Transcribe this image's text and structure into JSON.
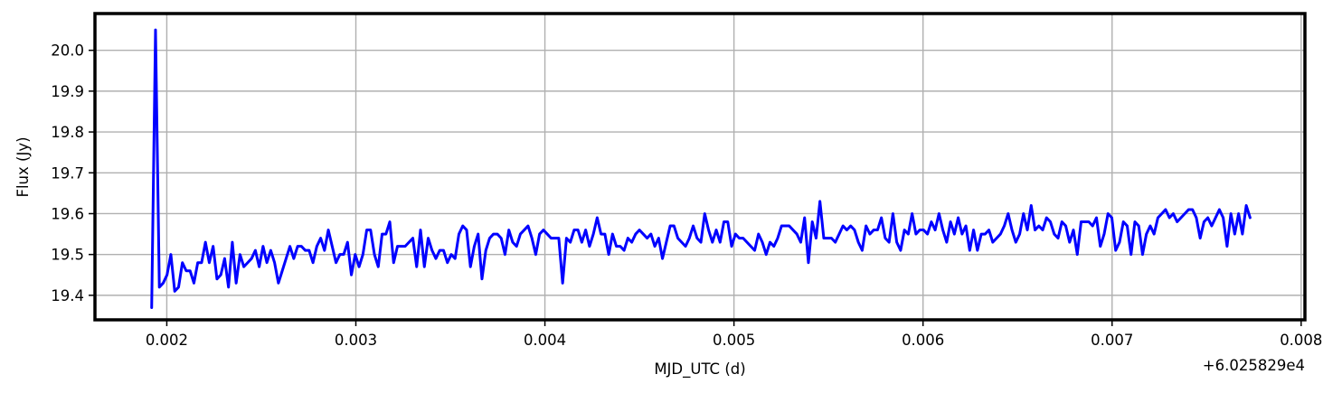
{
  "chart_data": {
    "type": "line",
    "xlabel": "MJD_UTC (d)",
    "ylabel": "Flux (Jy)",
    "x_offset_label": "+6.025829e4",
    "xlim": [
      0.00162,
      0.00802
    ],
    "ylim": [
      19.34,
      20.09
    ],
    "grid": true,
    "x_ticks": [
      0.002,
      0.003,
      0.004,
      0.005,
      0.006,
      0.007,
      0.008
    ],
    "x_tick_labels": [
      "0.002",
      "0.003",
      "0.004",
      "0.005",
      "0.006",
      "0.007",
      "0.008"
    ],
    "y_ticks": [
      19.4,
      19.5,
      19.6,
      19.7,
      19.8,
      19.9,
      20.0
    ],
    "y_tick_labels": [
      "19.4",
      "19.5",
      "19.6",
      "19.7",
      "19.8",
      "19.9",
      "20.0"
    ],
    "series": [
      {
        "color": "#0000ff",
        "x_start": 0.00192,
        "x_end": 0.00773,
        "y": [
          19.37,
          20.05,
          19.42,
          19.43,
          19.45,
          19.5,
          19.41,
          19.42,
          19.48,
          19.46,
          19.46,
          19.43,
          19.48,
          19.48,
          19.53,
          19.48,
          19.52,
          19.44,
          19.45,
          19.49,
          19.42,
          19.53,
          19.43,
          19.5,
          19.47,
          19.48,
          19.49,
          19.51,
          19.47,
          19.52,
          19.48,
          19.51,
          19.48,
          19.43,
          19.46,
          19.49,
          19.52,
          19.49,
          19.52,
          19.52,
          19.51,
          19.51,
          19.48,
          19.52,
          19.54,
          19.51,
          19.56,
          19.52,
          19.48,
          19.5,
          19.5,
          19.53,
          19.45,
          19.5,
          19.47,
          19.5,
          19.56,
          19.56,
          19.5,
          19.47,
          19.55,
          19.55,
          19.58,
          19.48,
          19.52,
          19.52,
          19.52,
          19.53,
          19.54,
          19.47,
          19.56,
          19.47,
          19.54,
          19.51,
          19.49,
          19.51,
          19.51,
          19.48,
          19.5,
          19.49,
          19.55,
          19.57,
          19.56,
          19.47,
          19.52,
          19.55,
          19.44,
          19.51,
          19.54,
          19.55,
          19.55,
          19.54,
          19.5,
          19.56,
          19.53,
          19.52,
          19.55,
          19.56,
          19.57,
          19.54,
          19.5,
          19.55,
          19.56,
          19.55,
          19.54,
          19.54,
          19.54,
          19.43,
          19.54,
          19.53,
          19.56,
          19.56,
          19.53,
          19.56,
          19.52,
          19.55,
          19.59,
          19.55,
          19.55,
          19.5,
          19.55,
          19.52,
          19.52,
          19.51,
          19.54,
          19.53,
          19.55,
          19.56,
          19.55,
          19.54,
          19.55,
          19.52,
          19.54,
          19.49,
          19.53,
          19.57,
          19.57,
          19.54,
          19.53,
          19.52,
          19.54,
          19.57,
          19.54,
          19.53,
          19.6,
          19.56,
          19.53,
          19.56,
          19.53,
          19.58,
          19.58,
          19.52,
          19.55,
          19.54,
          19.54,
          19.53,
          19.52,
          19.51,
          19.55,
          19.53,
          19.5,
          19.53,
          19.52,
          19.54,
          19.57,
          19.57,
          19.57,
          19.56,
          19.55,
          19.53,
          19.59,
          19.48,
          19.58,
          19.54,
          19.63,
          19.54,
          19.54,
          19.54,
          19.53,
          19.55,
          19.57,
          19.56,
          19.57,
          19.56,
          19.53,
          19.51,
          19.57,
          19.55,
          19.56,
          19.56,
          19.59,
          19.54,
          19.53,
          19.6,
          19.53,
          19.51,
          19.56,
          19.55,
          19.6,
          19.55,
          19.56,
          19.56,
          19.55,
          19.58,
          19.56,
          19.6,
          19.56,
          19.53,
          19.58,
          19.55,
          19.59,
          19.55,
          19.57,
          19.51,
          19.56,
          19.51,
          19.55,
          19.55,
          19.56,
          19.53,
          19.54,
          19.55,
          19.57,
          19.6,
          19.56,
          19.53,
          19.55,
          19.6,
          19.56,
          19.62,
          19.56,
          19.57,
          19.56,
          19.59,
          19.58,
          19.55,
          19.54,
          19.58,
          19.57,
          19.53,
          19.56,
          19.5,
          19.58,
          19.58,
          19.58,
          19.57,
          19.59,
          19.52,
          19.55,
          19.6,
          19.59,
          19.51,
          19.53,
          19.58,
          19.57,
          19.5,
          19.58,
          19.57,
          19.5,
          19.55,
          19.57,
          19.55,
          19.59,
          19.6,
          19.61,
          19.59,
          19.6,
          19.58,
          19.59,
          19.6,
          19.61,
          19.61,
          19.59,
          19.54,
          19.58,
          19.59,
          19.57,
          19.59,
          19.61,
          19.59,
          19.52,
          19.6,
          19.55,
          19.6,
          19.55,
          19.62,
          19.59
        ]
      }
    ]
  }
}
